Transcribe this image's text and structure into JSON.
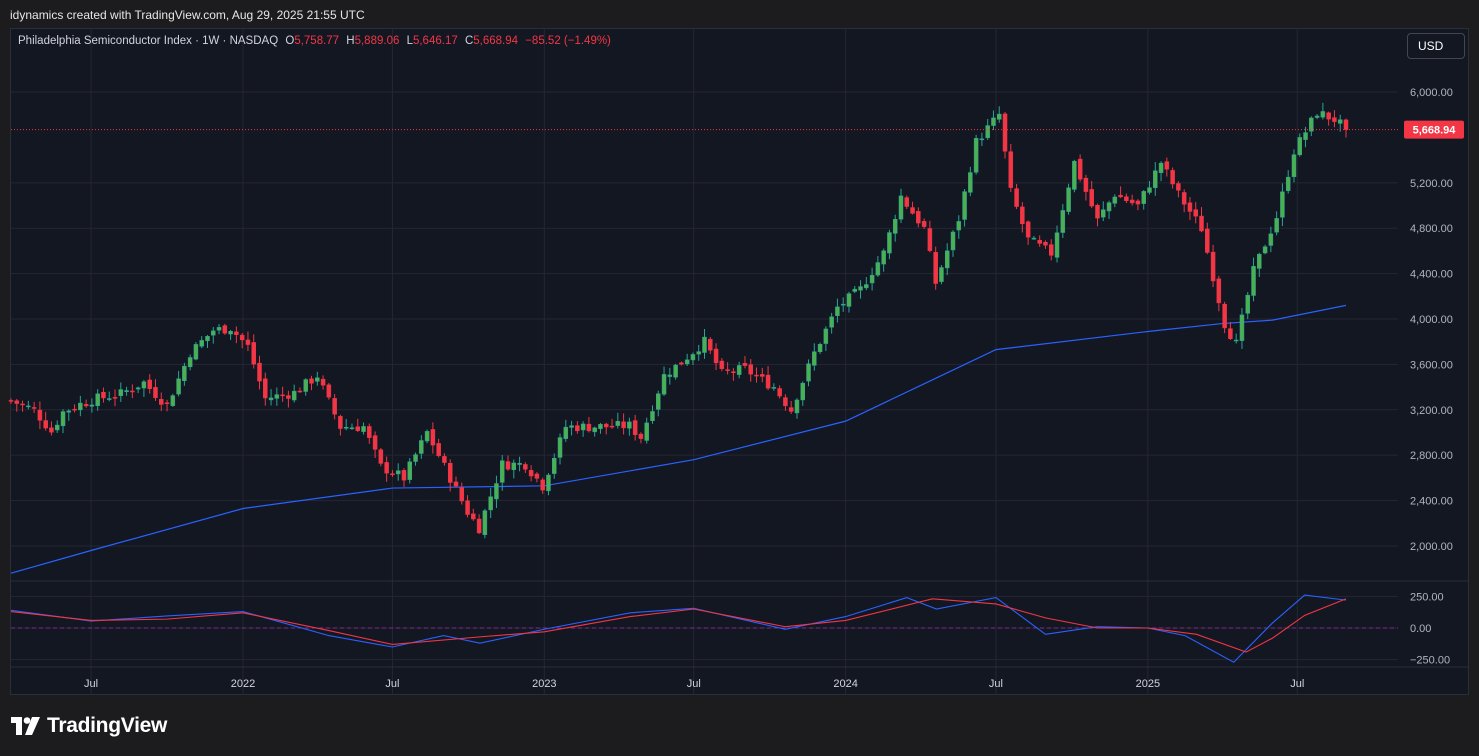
{
  "header": {
    "caption": "idynamics created with TradingView.com, Aug 29, 2025 21:55 UTC"
  },
  "legend": {
    "symbol": "Philadelphia Semiconductor Index · 1W · NASDAQ",
    "open_label": "O",
    "open": "5,758.77",
    "high_label": "H",
    "high": "5,889.06",
    "low_label": "L",
    "low": "5,646.17",
    "close_label": "C",
    "close": "5,668.94",
    "change": "−85.52 (−1.49%)"
  },
  "currency_button": "USD",
  "footer": {
    "brand": "TradingView"
  },
  "colors": {
    "background": "#131722",
    "up": "#26a69a",
    "up_body": "#4caf50",
    "down": "#f23645",
    "ma_line": "#2962ff",
    "grid": "#242733",
    "text": "#b2b5be",
    "oscillator_fast": "#2962ff",
    "oscillator_slow": "#f23645"
  },
  "chart_data": [
    {
      "type": "candlestick",
      "title": "Philadelphia Semiconductor Index · 1W · NASDAQ",
      "x_ticks": [
        "Jul",
        "2022",
        "Jul",
        "2023",
        "Jul",
        "2024",
        "Jul",
        "2025",
        "Jul"
      ],
      "x_tick_dates": [
        "2021-07-01",
        "2022-01-01",
        "2022-07-01",
        "2023-01-01",
        "2023-07-01",
        "2024-01-01",
        "2024-07-01",
        "2025-01-01",
        "2025-07-01"
      ],
      "x_range": [
        "2021-03-26",
        "2025-10-31"
      ],
      "y_ticks": [
        "2,000.00",
        "2,400.00",
        "2,800.00",
        "3,200.00",
        "3,600.00",
        "4,000.00",
        "4,400.00",
        "4,800.00",
        "5,200.00",
        "6,000.00"
      ],
      "y_tick_values": [
        2000,
        2400,
        2800,
        3200,
        3600,
        4000,
        4400,
        4800,
        5200,
        6000
      ],
      "ylim": [
        1700,
        6300
      ],
      "last_price_label": "5,668.94",
      "last_price": 5668.94,
      "series": [
        {
          "role": "candles",
          "close_points": [
            [
              "2021-03-26",
              3280
            ],
            [
              "2021-04-23",
              3200
            ],
            [
              "2021-05-14",
              3010
            ],
            [
              "2021-05-28",
              3180
            ],
            [
              "2021-06-18",
              3250
            ],
            [
              "2021-07-09",
              3300
            ],
            [
              "2021-08-06",
              3340
            ],
            [
              "2021-09-03",
              3440
            ],
            [
              "2021-10-01",
              3240
            ],
            [
              "2021-10-29",
              3700
            ],
            [
              "2021-11-26",
              3900
            ],
            [
              "2021-12-17",
              3920
            ],
            [
              "2022-01-07",
              3760
            ],
            [
              "2022-01-28",
              3300
            ],
            [
              "2022-03-04",
              3350
            ],
            [
              "2022-04-01",
              3500
            ],
            [
              "2022-04-29",
              3050
            ],
            [
              "2022-05-27",
              3050
            ],
            [
              "2022-06-17",
              2700
            ],
            [
              "2022-07-15",
              2600
            ],
            [
              "2022-08-12",
              3000
            ],
            [
              "2022-09-02",
              2700
            ],
            [
              "2022-09-30",
              2300
            ],
            [
              "2022-10-14",
              2160
            ],
            [
              "2022-11-11",
              2720
            ],
            [
              "2022-12-09",
              2720
            ],
            [
              "2022-12-30",
              2530
            ],
            [
              "2023-01-27",
              3050
            ],
            [
              "2023-03-03",
              3050
            ],
            [
              "2023-04-14",
              3060
            ],
            [
              "2023-04-28",
              2960
            ],
            [
              "2023-05-26",
              3500
            ],
            [
              "2023-06-16",
              3620
            ],
            [
              "2023-07-14",
              3800
            ],
            [
              "2023-08-04",
              3520
            ],
            [
              "2023-09-01",
              3560
            ],
            [
              "2023-10-06",
              3400
            ],
            [
              "2023-10-27",
              3200
            ],
            [
              "2023-11-24",
              3700
            ],
            [
              "2023-12-22",
              4100
            ],
            [
              "2024-01-19",
              4260
            ],
            [
              "2024-02-16",
              4580
            ],
            [
              "2024-03-08",
              5080
            ],
            [
              "2024-04-05",
              4800
            ],
            [
              "2024-04-19",
              4320
            ],
            [
              "2024-05-17",
              4880
            ],
            [
              "2024-06-07",
              5560
            ],
            [
              "2024-07-05",
              5800
            ],
            [
              "2024-07-19",
              5120
            ],
            [
              "2024-08-09",
              4700
            ],
            [
              "2024-09-06",
              4580
            ],
            [
              "2024-10-04",
              5380
            ],
            [
              "2024-11-01",
              4870
            ],
            [
              "2024-11-22",
              5100
            ],
            [
              "2024-12-20",
              5000
            ],
            [
              "2025-01-17",
              5380
            ],
            [
              "2025-02-07",
              5100
            ],
            [
              "2025-03-07",
              4800
            ],
            [
              "2025-04-04",
              3960
            ],
            [
              "2025-04-18",
              3780
            ],
            [
              "2025-05-09",
              4420
            ],
            [
              "2025-06-06",
              4900
            ],
            [
              "2025-06-27",
              5480
            ],
            [
              "2025-07-25",
              5820
            ],
            [
              "2025-08-15",
              5760
            ],
            [
              "2025-08-29",
              5669
            ]
          ]
        },
        {
          "role": "moving-average",
          "points": [
            [
              "2021-03-26",
              1760
            ],
            [
              "2021-07-01",
              1960
            ],
            [
              "2022-01-01",
              2330
            ],
            [
              "2022-07-01",
              2510
            ],
            [
              "2023-01-01",
              2530
            ],
            [
              "2023-07-01",
              2760
            ],
            [
              "2024-01-01",
              3100
            ],
            [
              "2024-07-01",
              3730
            ],
            [
              "2025-01-01",
              3890
            ],
            [
              "2025-04-01",
              3960
            ],
            [
              "2025-06-01",
              3990
            ],
            [
              "2025-08-29",
              4120
            ]
          ]
        }
      ]
    },
    {
      "type": "line",
      "y_ticks": [
        "250.00",
        "0.00",
        "−250.00"
      ],
      "y_tick_values": [
        250,
        0,
        -250
      ],
      "ylim": [
        -300,
        300
      ],
      "x_range": [
        "2021-03-26",
        "2025-10-31"
      ],
      "series": [
        {
          "role": "fast",
          "points": [
            [
              "2021-03-26",
              140
            ],
            [
              "2021-07-01",
              55
            ],
            [
              "2021-10-01",
              95
            ],
            [
              "2022-01-01",
              130
            ],
            [
              "2022-04-15",
              -60
            ],
            [
              "2022-07-01",
              -150
            ],
            [
              "2022-09-01",
              -60
            ],
            [
              "2022-10-15",
              -120
            ],
            [
              "2023-01-01",
              -10
            ],
            [
              "2023-04-15",
              120
            ],
            [
              "2023-07-01",
              155
            ],
            [
              "2023-10-20",
              -10
            ],
            [
              "2024-01-01",
              90
            ],
            [
              "2024-03-15",
              240
            ],
            [
              "2024-04-20",
              150
            ],
            [
              "2024-07-01",
              240
            ],
            [
              "2024-08-30",
              -50
            ],
            [
              "2024-11-01",
              10
            ],
            [
              "2025-01-01",
              0
            ],
            [
              "2025-02-15",
              -60
            ],
            [
              "2025-04-15",
              -270
            ],
            [
              "2025-06-01",
              40
            ],
            [
              "2025-07-10",
              260
            ],
            [
              "2025-08-29",
              220
            ]
          ]
        },
        {
          "role": "slow",
          "points": [
            [
              "2021-03-26",
              130
            ],
            [
              "2021-07-01",
              60
            ],
            [
              "2021-10-01",
              70
            ],
            [
              "2022-01-01",
              120
            ],
            [
              "2022-04-15",
              -20
            ],
            [
              "2022-07-01",
              -130
            ],
            [
              "2022-10-15",
              -70
            ],
            [
              "2023-01-01",
              -30
            ],
            [
              "2023-04-15",
              90
            ],
            [
              "2023-07-01",
              150
            ],
            [
              "2023-10-20",
              10
            ],
            [
              "2024-01-01",
              60
            ],
            [
              "2024-04-15",
              230
            ],
            [
              "2024-07-01",
              190
            ],
            [
              "2024-08-30",
              80
            ],
            [
              "2024-11-01",
              0
            ],
            [
              "2025-01-01",
              0
            ],
            [
              "2025-03-01",
              -50
            ],
            [
              "2025-04-30",
              -190
            ],
            [
              "2025-06-01",
              -80
            ],
            [
              "2025-07-10",
              100
            ],
            [
              "2025-08-29",
              230
            ]
          ]
        }
      ]
    }
  ]
}
